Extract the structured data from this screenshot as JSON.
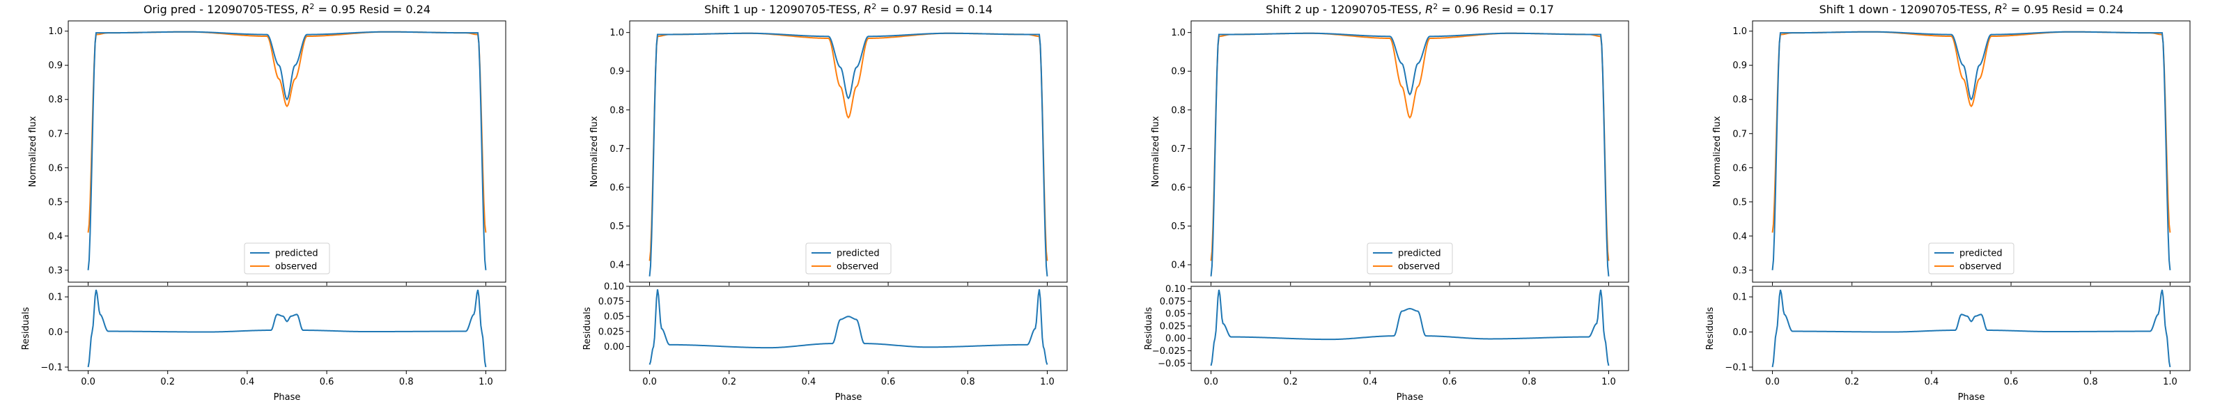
{
  "figure": {
    "colors": {
      "predicted": "#1f77b4",
      "observed": "#ff7f0e",
      "axes": "#000000",
      "background": "#ffffff"
    }
  },
  "chart_data": [
    {
      "type": "line",
      "title": "Orig pred - 12090705-TESS, R² = 0.95 Resid = 0.24",
      "title_parts": {
        "prefix": "Orig pred - 12090705-TESS, ",
        "r2": "R",
        "r2_sup": "2",
        "suffix": " = 0.95 Resid = 0.24"
      },
      "xlabel": "Phase",
      "ylabel": "Normalized flux",
      "xlim": [
        -0.05,
        1.05
      ],
      "ylim": [
        0.265,
        1.03
      ],
      "x_ticks": [
        0.0,
        0.2,
        0.4,
        0.6,
        0.8,
        1.0
      ],
      "x_tick_labels": [
        "0.0",
        "0.2",
        "0.4",
        "0.6",
        "0.8",
        "1.0"
      ],
      "y_ticks": [
        0.3,
        0.4,
        0.5,
        0.6,
        0.7,
        0.8,
        0.9,
        1.0
      ],
      "y_tick_labels": [
        "0.3",
        "0.4",
        "0.5",
        "0.6",
        "0.7",
        "0.8",
        "0.9",
        "1.0"
      ],
      "legend": {
        "placement": "lower-center",
        "entries": [
          "predicted",
          "observed"
        ]
      },
      "series": [
        {
          "name": "predicted",
          "x": [
            0.0,
            0.02,
            0.05,
            0.25,
            0.45,
            0.48,
            0.5,
            0.52,
            0.55,
            0.75,
            0.95,
            0.98,
            1.0
          ],
          "values": [
            0.3,
            0.995,
            0.995,
            0.998,
            0.99,
            0.9,
            0.8,
            0.9,
            0.99,
            0.998,
            0.995,
            0.995,
            0.3
          ]
        },
        {
          "name": "observed",
          "x": [
            0.0,
            0.02,
            0.05,
            0.25,
            0.45,
            0.48,
            0.5,
            0.52,
            0.55,
            0.75,
            0.95,
            0.98,
            1.0
          ],
          "values": [
            0.41,
            0.99,
            0.995,
            0.998,
            0.985,
            0.86,
            0.78,
            0.86,
            0.985,
            0.998,
            0.995,
            0.99,
            0.41
          ]
        }
      ],
      "residuals": {
        "ylabel": "Residuals",
        "ylim": [
          -0.11,
          0.13
        ],
        "y_ticks": [
          -0.1,
          0.0,
          0.1
        ],
        "y_tick_labels": [
          "−0.1",
          "0.0",
          "0.1"
        ],
        "x": [
          0.0,
          0.01,
          0.02,
          0.03,
          0.05,
          0.3,
          0.46,
          0.475,
          0.49,
          0.5,
          0.51,
          0.525,
          0.54,
          0.7,
          0.95,
          0.97,
          0.98,
          0.99,
          1.0
        ],
        "values": [
          -0.1,
          0.0,
          0.12,
          0.05,
          0.002,
          0.0,
          0.005,
          0.05,
          0.045,
          0.03,
          0.045,
          0.05,
          0.005,
          0.001,
          0.002,
          0.05,
          0.12,
          0.0,
          -0.1
        ]
      }
    },
    {
      "type": "line",
      "title": "Shift 1 up - 12090705-TESS, R² = 0.97 Resid = 0.14",
      "title_parts": {
        "prefix": "Shift 1 up - 12090705-TESS, ",
        "r2": "R",
        "r2_sup": "2",
        "suffix": " = 0.97 Resid = 0.14"
      },
      "xlabel": "Phase",
      "ylabel": "Normalized flux",
      "xlim": [
        -0.05,
        1.05
      ],
      "ylim": [
        0.355,
        1.03
      ],
      "x_ticks": [
        0.0,
        0.2,
        0.4,
        0.6,
        0.8,
        1.0
      ],
      "x_tick_labels": [
        "0.0",
        "0.2",
        "0.4",
        "0.6",
        "0.8",
        "1.0"
      ],
      "y_ticks": [
        0.4,
        0.5,
        0.6,
        0.7,
        0.8,
        0.9,
        1.0
      ],
      "y_tick_labels": [
        "0.4",
        "0.5",
        "0.6",
        "0.7",
        "0.8",
        "0.9",
        "1.0"
      ],
      "legend": {
        "placement": "lower-center",
        "entries": [
          "predicted",
          "observed"
        ]
      },
      "series": [
        {
          "name": "predicted",
          "x": [
            0.0,
            0.02,
            0.05,
            0.25,
            0.45,
            0.48,
            0.5,
            0.52,
            0.55,
            0.75,
            0.95,
            0.98,
            1.0
          ],
          "values": [
            0.37,
            0.995,
            0.995,
            0.998,
            0.99,
            0.91,
            0.83,
            0.91,
            0.99,
            0.998,
            0.995,
            0.995,
            0.37
          ]
        },
        {
          "name": "observed",
          "x": [
            0.0,
            0.02,
            0.05,
            0.25,
            0.45,
            0.48,
            0.5,
            0.52,
            0.55,
            0.75,
            0.95,
            0.98,
            1.0
          ],
          "values": [
            0.41,
            0.99,
            0.995,
            0.998,
            0.985,
            0.86,
            0.78,
            0.86,
            0.985,
            0.998,
            0.995,
            0.99,
            0.41
          ]
        }
      ],
      "residuals": {
        "ylabel": "Residuals",
        "ylim": [
          -0.04,
          0.1
        ],
        "y_ticks": [
          0.0,
          0.025,
          0.05,
          0.075,
          0.1
        ],
        "y_tick_labels": [
          "0.00",
          "0.025",
          "0.05",
          "0.075",
          "0.10"
        ],
        "x": [
          0.0,
          0.01,
          0.02,
          0.03,
          0.05,
          0.3,
          0.46,
          0.48,
          0.5,
          0.52,
          0.54,
          0.7,
          0.95,
          0.97,
          0.98,
          0.99,
          1.0
        ],
        "values": [
          -0.03,
          0.0,
          0.095,
          0.03,
          0.003,
          -0.002,
          0.005,
          0.045,
          0.05,
          0.045,
          0.005,
          -0.001,
          0.003,
          0.03,
          0.095,
          0.0,
          -0.03
        ]
      }
    },
    {
      "type": "line",
      "title": "Shift 2 up - 12090705-TESS, R² = 0.96 Resid = 0.17",
      "title_parts": {
        "prefix": "Shift 2 up - 12090705-TESS, ",
        "r2": "R",
        "r2_sup": "2",
        "suffix": " = 0.96 Resid = 0.17"
      },
      "xlabel": "Phase",
      "ylabel": "Normalized flux",
      "xlim": [
        -0.05,
        1.05
      ],
      "ylim": [
        0.355,
        1.03
      ],
      "x_ticks": [
        0.0,
        0.2,
        0.4,
        0.6,
        0.8,
        1.0
      ],
      "x_tick_labels": [
        "0.0",
        "0.2",
        "0.4",
        "0.6",
        "0.8",
        "1.0"
      ],
      "y_ticks": [
        0.4,
        0.5,
        0.6,
        0.7,
        0.8,
        0.9,
        1.0
      ],
      "y_tick_labels": [
        "0.4",
        "0.5",
        "0.6",
        "0.7",
        "0.8",
        "0.9",
        "1.0"
      ],
      "legend": {
        "placement": "lower-center",
        "entries": [
          "predicted",
          "observed"
        ]
      },
      "series": [
        {
          "name": "predicted",
          "x": [
            0.0,
            0.02,
            0.05,
            0.25,
            0.45,
            0.48,
            0.5,
            0.52,
            0.55,
            0.75,
            0.95,
            0.98,
            1.0
          ],
          "values": [
            0.37,
            0.995,
            0.995,
            0.998,
            0.99,
            0.92,
            0.84,
            0.92,
            0.99,
            0.998,
            0.995,
            0.995,
            0.37
          ]
        },
        {
          "name": "observed",
          "x": [
            0.0,
            0.02,
            0.05,
            0.25,
            0.45,
            0.48,
            0.5,
            0.52,
            0.55,
            0.75,
            0.95,
            0.98,
            1.0
          ],
          "values": [
            0.41,
            0.99,
            0.995,
            0.998,
            0.985,
            0.86,
            0.78,
            0.86,
            0.985,
            0.998,
            0.995,
            0.99,
            0.41
          ]
        }
      ],
      "residuals": {
        "ylabel": "Residuals",
        "ylim": [
          -0.065,
          0.105
        ],
        "y_ticks": [
          -0.05,
          -0.025,
          0.0,
          0.025,
          0.05,
          0.075,
          0.1
        ],
        "y_tick_labels": [
          "−0.05",
          "−0.025",
          "0.00",
          "0.025",
          "0.05",
          "0.075",
          "0.10"
        ],
        "x": [
          0.0,
          0.01,
          0.02,
          0.03,
          0.05,
          0.3,
          0.46,
          0.48,
          0.5,
          0.52,
          0.54,
          0.7,
          0.95,
          0.97,
          0.98,
          0.99,
          1.0
        ],
        "values": [
          -0.055,
          0.0,
          0.098,
          0.03,
          0.003,
          -0.002,
          0.005,
          0.055,
          0.06,
          0.055,
          0.005,
          -0.001,
          0.003,
          0.03,
          0.098,
          0.0,
          -0.055
        ]
      }
    },
    {
      "type": "line",
      "title": "Shift 1 down - 12090705-TESS, R² = 0.95 Resid = 0.24",
      "title_parts": {
        "prefix": "Shift 1 down - 12090705-TESS, ",
        "r2": "R",
        "r2_sup": "2",
        "suffix": " = 0.95 Resid = 0.24"
      },
      "xlabel": "Phase",
      "ylabel": "Normalized flux",
      "xlim": [
        -0.05,
        1.05
      ],
      "ylim": [
        0.265,
        1.03
      ],
      "x_ticks": [
        0.0,
        0.2,
        0.4,
        0.6,
        0.8,
        1.0
      ],
      "x_tick_labels": [
        "0.0",
        "0.2",
        "0.4",
        "0.6",
        "0.8",
        "1.0"
      ],
      "y_ticks": [
        0.3,
        0.4,
        0.5,
        0.6,
        0.7,
        0.8,
        0.9,
        1.0
      ],
      "y_tick_labels": [
        "0.3",
        "0.4",
        "0.5",
        "0.6",
        "0.7",
        "0.8",
        "0.9",
        "1.0"
      ],
      "legend": {
        "placement": "lower-center",
        "entries": [
          "predicted",
          "observed"
        ]
      },
      "series": [
        {
          "name": "predicted",
          "x": [
            0.0,
            0.02,
            0.05,
            0.25,
            0.45,
            0.48,
            0.5,
            0.52,
            0.55,
            0.75,
            0.95,
            0.98,
            1.0
          ],
          "values": [
            0.3,
            0.995,
            0.995,
            0.998,
            0.99,
            0.9,
            0.8,
            0.9,
            0.99,
            0.998,
            0.995,
            0.995,
            0.3
          ]
        },
        {
          "name": "observed",
          "x": [
            0.0,
            0.02,
            0.05,
            0.25,
            0.45,
            0.48,
            0.5,
            0.52,
            0.55,
            0.75,
            0.95,
            0.98,
            1.0
          ],
          "values": [
            0.41,
            0.99,
            0.995,
            0.998,
            0.985,
            0.86,
            0.78,
            0.86,
            0.985,
            0.998,
            0.995,
            0.99,
            0.41
          ]
        }
      ],
      "residuals": {
        "ylabel": "Residuals",
        "ylim": [
          -0.11,
          0.13
        ],
        "y_ticks": [
          -0.1,
          0.0,
          0.1
        ],
        "y_tick_labels": [
          "−0.1",
          "0.0",
          "0.1"
        ],
        "x": [
          0.0,
          0.01,
          0.02,
          0.03,
          0.05,
          0.3,
          0.46,
          0.475,
          0.49,
          0.5,
          0.51,
          0.525,
          0.54,
          0.7,
          0.95,
          0.97,
          0.98,
          0.99,
          1.0
        ],
        "values": [
          -0.1,
          0.0,
          0.12,
          0.05,
          0.002,
          0.0,
          0.005,
          0.05,
          0.045,
          0.03,
          0.045,
          0.05,
          0.005,
          0.001,
          0.002,
          0.05,
          0.12,
          0.0,
          -0.1
        ]
      }
    }
  ]
}
